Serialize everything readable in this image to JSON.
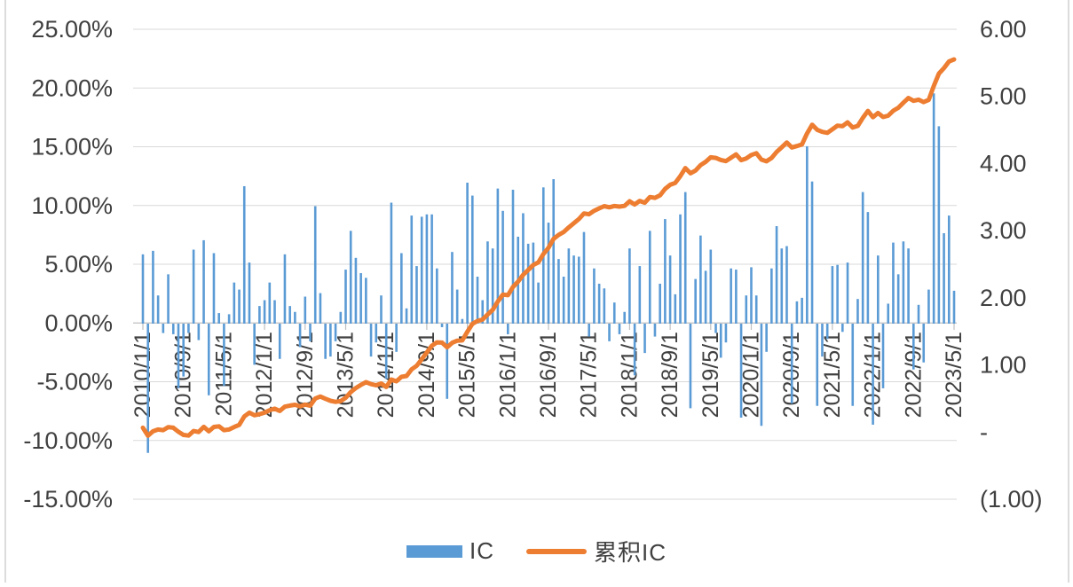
{
  "chart_data": {
    "type": "bar+line",
    "title": "",
    "x_freq": "monthly",
    "x_start": "2010/1/1",
    "x_end": "2023/5/1",
    "x_tick_labels": [
      "2010/1/1",
      "2010/9/1",
      "2011/5/1",
      "2012/1/1",
      "2012/9/1",
      "2013/5/1",
      "2014/1/1",
      "2014/9/1",
      "2015/5/1",
      "2016/1/1",
      "2016/9/1",
      "2017/5/1",
      "2018/1/1",
      "2018/9/1",
      "2019/5/1",
      "2020/1/1",
      "2020/9/1",
      "2021/5/1",
      "2022/1/1",
      "2022/9/1",
      "2023/5/1"
    ],
    "left_axis": {
      "unit": "%",
      "max": 25,
      "min": -15,
      "tick_labels": [
        "25.00%",
        "20.00%",
        "15.00%",
        "10.00%",
        "5.00%",
        "0.00%",
        "-5.00%",
        "-10.00%",
        "-15.00%"
      ]
    },
    "right_axis": {
      "max": 6,
      "min": -1,
      "tick_labels": [
        "6.00",
        "5.00",
        "4.00",
        "3.00",
        "2.00",
        "1.00",
        "-",
        "(1.00)"
      ]
    },
    "legend": [
      "IC",
      "累积IC"
    ],
    "colors": {
      "bar": "#5B9BD5",
      "line": "#ED7D31",
      "gridline": "#D9D9D9",
      "axis_line": "#BFBFBF",
      "axis_text": "#404040",
      "card_edge": "#DCDCDC"
    },
    "series": [
      {
        "name": "IC",
        "type": "bar",
        "axis": "left",
        "unit": "percent",
        "values": [
          5.9,
          -11.0,
          6.2,
          2.4,
          -0.8,
          4.2,
          -0.9,
          -5.5,
          -4.5,
          -0.8,
          6.3,
          -1.4,
          7.1,
          -6.1,
          6.0,
          0.9,
          -5.3,
          0.8,
          3.5,
          2.9,
          11.7,
          5.2,
          -3.5,
          1.5,
          2.0,
          3.5,
          2.0,
          -3.0,
          5.9,
          1.5,
          1.0,
          -2.0,
          2.3,
          -1.5,
          10.0,
          2.6,
          -3.0,
          -2.8,
          -1.5,
          1.0,
          4.6,
          7.9,
          5.6,
          4.3,
          3.9,
          -2.8,
          -1.6,
          2.4,
          -4.7,
          10.3,
          -2.4,
          6.0,
          1.3,
          9.2,
          4.9,
          9.1,
          9.3,
          9.3,
          4.7,
          -0.3,
          -6.4,
          6.1,
          2.9,
          0.4,
          12.0,
          10.9,
          4.0,
          2.0,
          7.0,
          6.4,
          11.5,
          9.6,
          -0.9,
          11.4,
          7.4,
          9.4,
          6.8,
          6.9,
          3.5,
          11.6,
          8.6,
          12.3,
          5.5,
          4.0,
          6.4,
          5.8,
          5.7,
          7.8,
          -1.1,
          4.7,
          3.4,
          3.0,
          -1.5,
          1.8,
          -0.9,
          1.0,
          6.4,
          -4.4,
          4.9,
          -2.5,
          7.9,
          -1.1,
          3.4,
          8.9,
          5.8,
          2.5,
          9.3,
          11.2,
          -7.2,
          3.8,
          7.5,
          4.5,
          6.3,
          -0.8,
          -2.9,
          -1.6,
          4.7,
          4.6,
          -8.0,
          2.4,
          4.8,
          2.4,
          -8.7,
          -2.4,
          4.7,
          8.3,
          6.4,
          6.6,
          -6.8,
          1.9,
          2.2,
          15.1,
          12.1,
          -7.0,
          -2.8,
          -1.3,
          4.9,
          5.0,
          -0.7,
          5.2,
          -7.0,
          2.1,
          11.2,
          9.5,
          -8.6,
          5.8,
          -5.5,
          1.7,
          6.9,
          4.2,
          7.0,
          6.4,
          -3.9,
          1.6,
          -3.3,
          2.9,
          19.6,
          16.8,
          7.7,
          9.2,
          2.8
        ]
      },
      {
        "name": "累积IC",
        "type": "line",
        "axis": "right",
        "values": [
          0.064,
          -0.055,
          0.012,
          0.038,
          0.029,
          0.074,
          0.065,
          0.005,
          -0.043,
          -0.052,
          0.016,
          0.001,
          0.078,
          0.012,
          0.076,
          0.086,
          0.029,
          0.038,
          0.075,
          0.107,
          0.233,
          0.289,
          0.251,
          0.267,
          0.289,
          0.326,
          0.348,
          0.316,
          0.379,
          0.395,
          0.406,
          0.384,
          0.409,
          0.393,
          0.501,
          0.529,
          0.497,
          0.466,
          0.45,
          0.461,
          0.511,
          0.596,
          0.656,
          0.702,
          0.744,
          0.714,
          0.697,
          0.723,
          0.672,
          0.783,
          0.757,
          0.822,
          0.836,
          0.935,
          0.988,
          1.086,
          1.186,
          1.286,
          1.337,
          1.333,
          1.264,
          1.33,
          1.361,
          1.366,
          1.495,
          1.612,
          1.655,
          1.677,
          1.752,
          1.821,
          1.945,
          2.048,
          2.039,
          2.162,
          2.241,
          2.342,
          2.416,
          2.49,
          2.528,
          2.653,
          2.745,
          2.878,
          2.937,
          2.98,
          3.049,
          3.111,
          3.173,
          3.257,
          3.245,
          3.296,
          3.332,
          3.365,
          3.348,
          3.368,
          3.358,
          3.369,
          3.438,
          3.39,
          3.443,
          3.416,
          3.501,
          3.489,
          3.526,
          3.622,
          3.684,
          3.711,
          3.811,
          3.932,
          3.855,
          3.896,
          3.976,
          4.025,
          4.093,
          4.084,
          4.053,
          4.036,
          4.086,
          4.136,
          4.05,
          4.075,
          4.127,
          4.153,
          4.059,
          4.033,
          4.084,
          4.173,
          4.242,
          4.313,
          4.24,
          4.261,
          4.284,
          4.447,
          4.577,
          4.502,
          4.472,
          4.458,
          4.51,
          4.564,
          4.557,
          4.613,
          4.537,
          4.56,
          4.681,
          4.783,
          4.69,
          4.753,
          4.694,
          4.712,
          4.786,
          4.831,
          4.907,
          4.976,
          4.934,
          4.951,
          4.915,
          4.947,
          5.158,
          5.339,
          5.422,
          5.521,
          5.551
        ]
      }
    ]
  }
}
